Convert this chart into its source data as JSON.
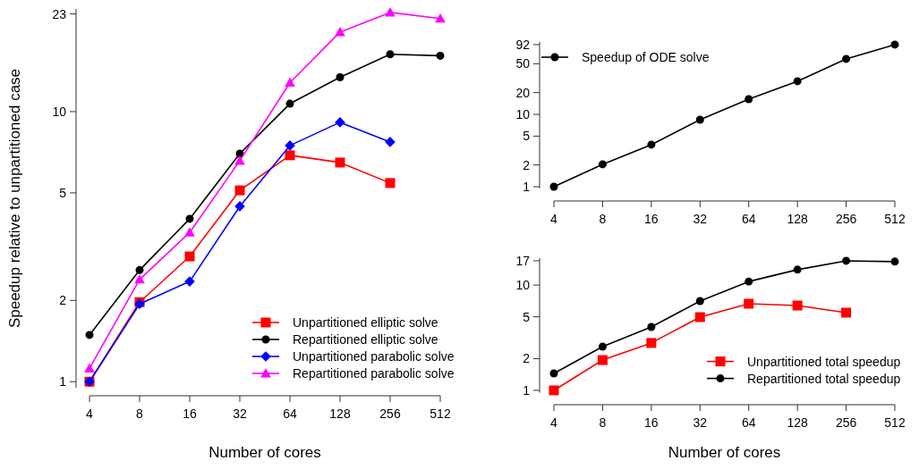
{
  "chart_data": [
    {
      "type": "line",
      "categories": [
        "4",
        "8",
        "16",
        "32",
        "64",
        "128",
        "256",
        "512"
      ],
      "xlabel": "Number of cores",
      "ylabel": "Speedup relative to unpartitioned case",
      "log": "y",
      "ylim": [
        0.95,
        24
      ],
      "yticks": [
        1,
        2,
        5,
        10,
        23
      ],
      "legend": "bottom right",
      "series": [
        {
          "name": "Unpartitioned elliptic solve",
          "color": "#ff0000",
          "marker": "square",
          "values": [
            1,
            1.97,
            2.91,
            5.11,
            6.89,
            6.48,
            5.44,
            null
          ]
        },
        {
          "name": "Repartitioned elliptic solve",
          "color": "#000000",
          "marker": "circle",
          "values": [
            1.49,
            2.59,
            4.01,
            6.99,
            10.7,
            13.4,
            16.3,
            16.1
          ]
        },
        {
          "name": "Unpartitioned parabolic solve",
          "color": "#0000ff",
          "marker": "diamond",
          "values": [
            1,
            1.94,
            2.35,
            4.46,
            7.49,
            9.13,
            7.72,
            null
          ]
        },
        {
          "name": "Repartitioned parabolic solve",
          "color": "#ff00ff",
          "marker": "triangle",
          "values": [
            1.12,
            2.39,
            3.57,
            6.58,
            12.8,
            19.7,
            23.3,
            22.1
          ]
        }
      ]
    },
    {
      "type": "line",
      "categories": [
        "4",
        "8",
        "16",
        "32",
        "64",
        "128",
        "256",
        "512"
      ],
      "log": "y",
      "ylim": [
        0.95,
        100
      ],
      "yticks": [
        1,
        2,
        5,
        10,
        20,
        50,
        92
      ],
      "legend": "top left",
      "series": [
        {
          "name": "Speedup of ODE solve",
          "color": "#000000",
          "marker": "circle",
          "values": [
            1,
            2.04,
            3.81,
            8.44,
            16.2,
            28.7,
            58.4,
            92
          ]
        }
      ]
    },
    {
      "type": "line",
      "categories": [
        "4",
        "8",
        "16",
        "32",
        "64",
        "128",
        "256",
        "512"
      ],
      "xlabel": "Number of cores",
      "log": "y",
      "ylim": [
        0.95,
        18
      ],
      "yticks": [
        1,
        2,
        5,
        10,
        17
      ],
      "legend": "bottom right",
      "series": [
        {
          "name": "Unpartitioned total speedup",
          "color": "#ff0000",
          "marker": "square",
          "values": [
            1,
            1.94,
            2.82,
            4.96,
            6.65,
            6.39,
            5.47,
            null
          ]
        },
        {
          "name": "Repartitioned total speedup",
          "color": "#000000",
          "marker": "circle",
          "values": [
            1.45,
            2.6,
            4.0,
            7.05,
            10.8,
            14.0,
            17.0,
            16.7
          ]
        }
      ]
    }
  ]
}
